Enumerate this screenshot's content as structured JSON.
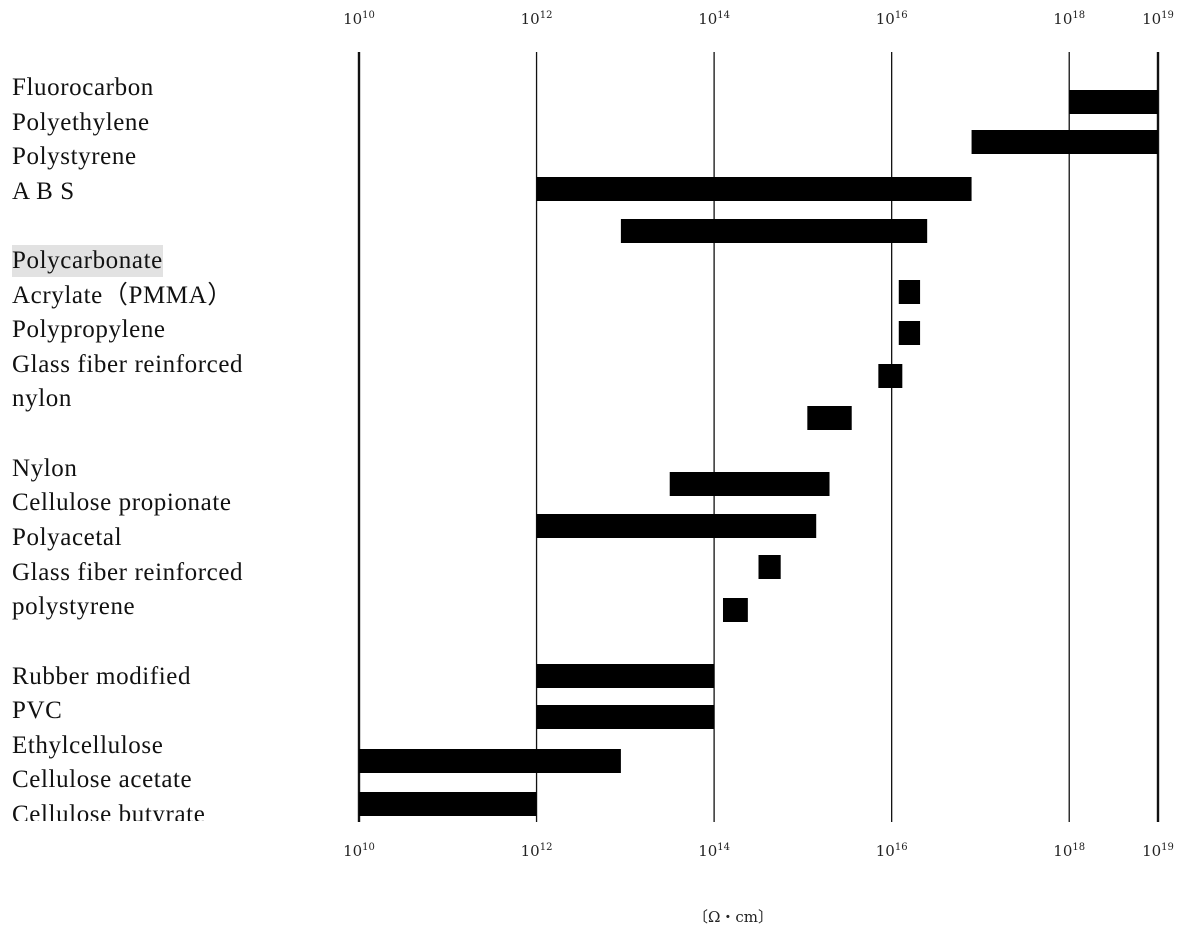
{
  "labels": [
    "Fluorocarbon",
    "Polyethylene",
    "Polystyrene",
    "A B S",
    "Polycarbonate",
    "Acrylate（PMMA）",
    "Polypropylene",
    "Glass fiber reinforced",
    "nylon",
    "Nylon",
    "Cellulose propionate",
    "Polyacetal",
    "Glass fiber reinforced",
    "polystyrene",
    "Rubber modified",
    "PVC",
    "Ethylcellulose",
    "Cellulose acetate",
    "Cellulose butyrate"
  ],
  "chart_data": {
    "type": "bar",
    "orientation": "horizontal",
    "xscale": "log",
    "xlim_exp": [
      10,
      19
    ],
    "grid": "vertical lines at ticks",
    "tick_exponents": [
      10,
      12,
      14,
      16,
      18,
      19
    ],
    "tick_labels": [
      {
        "base": "10",
        "exp": "10"
      },
      {
        "base": "10",
        "exp": "12"
      },
      {
        "base": "10",
        "exp": "14"
      },
      {
        "base": "10",
        "exp": "16"
      },
      {
        "base": "10",
        "exp": "18"
      },
      {
        "base": "10",
        "exp": "19"
      }
    ],
    "unit": "〔Ω・cm〕",
    "bars_log10_range": [
      [
        18.0,
        19.0
      ],
      [
        16.9,
        19.0
      ],
      [
        12.0,
        16.9
      ],
      [
        12.95,
        16.4
      ],
      [
        16.08,
        16.32
      ],
      [
        16.08,
        16.32
      ],
      [
        15.85,
        16.12
      ],
      [
        15.05,
        15.55
      ],
      [
        13.5,
        15.3
      ],
      [
        12.0,
        15.15
      ],
      [
        14.5,
        14.75
      ],
      [
        14.1,
        14.38
      ],
      [
        12.0,
        14.0
      ],
      [
        12.0,
        14.0
      ],
      [
        10.0,
        12.95
      ],
      [
        10.0,
        12.0
      ]
    ]
  }
}
